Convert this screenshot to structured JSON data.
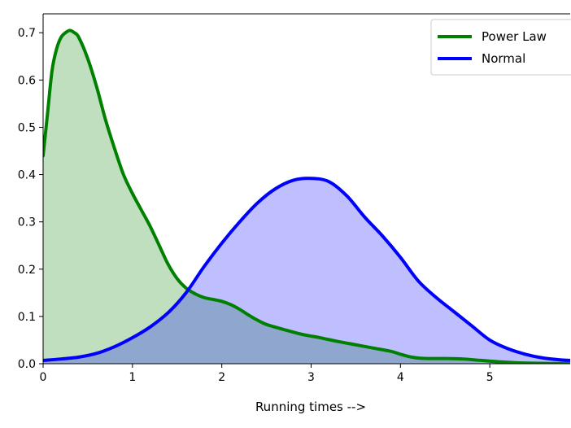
{
  "chart_data": {
    "type": "area",
    "title": "",
    "xlabel": "Running times  -->",
    "ylabel": "",
    "xlim": [
      0,
      5.9
    ],
    "ylim": [
      0,
      0.74
    ],
    "xticks": [
      0,
      1,
      2,
      3,
      4,
      5
    ],
    "yticks": [
      0.0,
      0.1,
      0.2,
      0.3,
      0.4,
      0.5,
      0.6,
      0.7
    ],
    "grid": false,
    "legend_position": "top-right",
    "series": [
      {
        "name": "Power Law",
        "color": "#008000",
        "fill_color": "#008000",
        "fill_opacity": 0.25,
        "x": [
          0,
          0.05,
          0.1,
          0.15,
          0.2,
          0.25,
          0.3,
          0.35,
          0.4,
          0.5,
          0.6,
          0.7,
          0.8,
          0.9,
          1.0,
          1.1,
          1.2,
          1.3,
          1.4,
          1.5,
          1.6,
          1.7,
          1.8,
          1.9,
          2.0,
          2.1,
          2.2,
          2.3,
          2.4,
          2.5,
          2.7,
          2.9,
          3.1,
          3.3,
          3.5,
          3.7,
          3.9,
          4.0,
          4.1,
          4.2,
          4.3,
          4.5,
          4.7,
          4.9,
          5.1,
          5.3,
          5.5,
          5.7,
          5.9
        ],
        "y": [
          0.44,
          0.53,
          0.62,
          0.665,
          0.69,
          0.7,
          0.705,
          0.7,
          0.69,
          0.645,
          0.585,
          0.515,
          0.455,
          0.4,
          0.36,
          0.325,
          0.29,
          0.25,
          0.21,
          0.18,
          0.16,
          0.148,
          0.14,
          0.136,
          0.132,
          0.125,
          0.115,
          0.103,
          0.092,
          0.083,
          0.072,
          0.062,
          0.055,
          0.047,
          0.04,
          0.033,
          0.026,
          0.02,
          0.015,
          0.012,
          0.011,
          0.011,
          0.01,
          0.007,
          0.004,
          0.002,
          0.001,
          0.0005,
          0.0003
        ]
      },
      {
        "name": "Normal",
        "color": "#0000ff",
        "fill_color": "#0000ff",
        "fill_opacity": 0.25,
        "x": [
          0,
          0.2,
          0.4,
          0.6,
          0.8,
          1.0,
          1.2,
          1.4,
          1.6,
          1.8,
          2.0,
          2.2,
          2.4,
          2.6,
          2.8,
          3.0,
          3.2,
          3.4,
          3.6,
          3.8,
          4.0,
          4.2,
          4.4,
          4.6,
          4.8,
          5.0,
          5.2,
          5.4,
          5.6,
          5.8,
          5.9
        ],
        "y": [
          0.007,
          0.01,
          0.014,
          0.022,
          0.036,
          0.055,
          0.078,
          0.108,
          0.15,
          0.205,
          0.255,
          0.3,
          0.34,
          0.37,
          0.388,
          0.392,
          0.385,
          0.355,
          0.31,
          0.27,
          0.225,
          0.175,
          0.14,
          0.11,
          0.08,
          0.05,
          0.032,
          0.02,
          0.012,
          0.008,
          0.007
        ]
      }
    ]
  }
}
